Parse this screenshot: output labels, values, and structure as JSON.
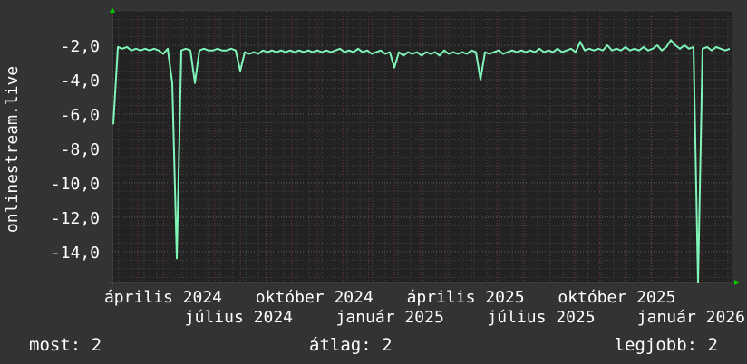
{
  "chart_data": {
    "type": "line",
    "title": "",
    "ylabel": "onlinestream.live",
    "xlabel": "",
    "ylim": [
      -15.8,
      0
    ],
    "y_ticks": [
      "-2,0",
      "-4,0",
      "-6,0",
      "-8,0",
      "-10,0",
      "-12,0",
      "-14,0"
    ],
    "y_tick_values": [
      -2,
      -4,
      -6,
      -8,
      -10,
      -12,
      -14
    ],
    "x_tick_labels": [
      "április 2024",
      "július 2024",
      "október 2024",
      "január 2025",
      "április 2025",
      "július 2025",
      "október 2025",
      "január 2026"
    ],
    "x_range": [
      "április 2024",
      "március 2026"
    ],
    "grid": true,
    "line_color": "#7ff5b8",
    "series": [
      {
        "values": [
          -6.6,
          -2.1,
          -2.2,
          -2.1,
          -2.3,
          -2.2,
          -2.3,
          -2.2,
          -2.3,
          -2.2,
          -2.3,
          -2.5,
          -2.2,
          -4.2,
          -14.4,
          -2.3,
          -2.2,
          -2.3,
          -4.2,
          -2.3,
          -2.2,
          -2.3,
          -2.3,
          -2.2,
          -2.3,
          -2.3,
          -2.2,
          -2.3,
          -3.5,
          -2.4,
          -2.5,
          -2.4,
          -2.5,
          -2.3,
          -2.4,
          -2.3,
          -2.4,
          -2.3,
          -2.4,
          -2.3,
          -2.4,
          -2.3,
          -2.4,
          -2.3,
          -2.4,
          -2.3,
          -2.4,
          -2.3,
          -2.4,
          -2.3,
          -2.2,
          -2.4,
          -2.3,
          -2.4,
          -2.2,
          -2.4,
          -2.3,
          -2.5,
          -2.4,
          -2.3,
          -2.5,
          -2.4,
          -3.3,
          -2.4,
          -2.6,
          -2.4,
          -2.5,
          -2.4,
          -2.6,
          -2.4,
          -2.5,
          -2.4,
          -2.6,
          -2.3,
          -2.5,
          -2.4,
          -2.5,
          -2.4,
          -2.5,
          -2.3,
          -2.4,
          -4.0,
          -2.4,
          -2.5,
          -2.4,
          -2.3,
          -2.5,
          -2.4,
          -2.3,
          -2.4,
          -2.3,
          -2.4,
          -2.3,
          -2.4,
          -2.2,
          -2.4,
          -2.3,
          -2.4,
          -2.2,
          -2.4,
          -2.3,
          -2.2,
          -2.4,
          -1.8,
          -2.3,
          -2.2,
          -2.3,
          -2.2,
          -2.3,
          -2.0,
          -2.3,
          -2.2,
          -2.3,
          -2.1,
          -2.3,
          -2.2,
          -2.3,
          -2.1,
          -2.3,
          -2.2,
          -2.0,
          -2.3,
          -2.1,
          -1.7,
          -2.0,
          -2.2,
          -2.0,
          -2.2,
          -2.1,
          -15.8,
          -2.2,
          -2.1,
          -2.3,
          -2.1,
          -2.2,
          -2.3,
          -2.2
        ]
      }
    ]
  },
  "legend": {
    "current_label": "most: 2",
    "average_label": "átlag: 2",
    "best_label": "legjobb: 2"
  }
}
